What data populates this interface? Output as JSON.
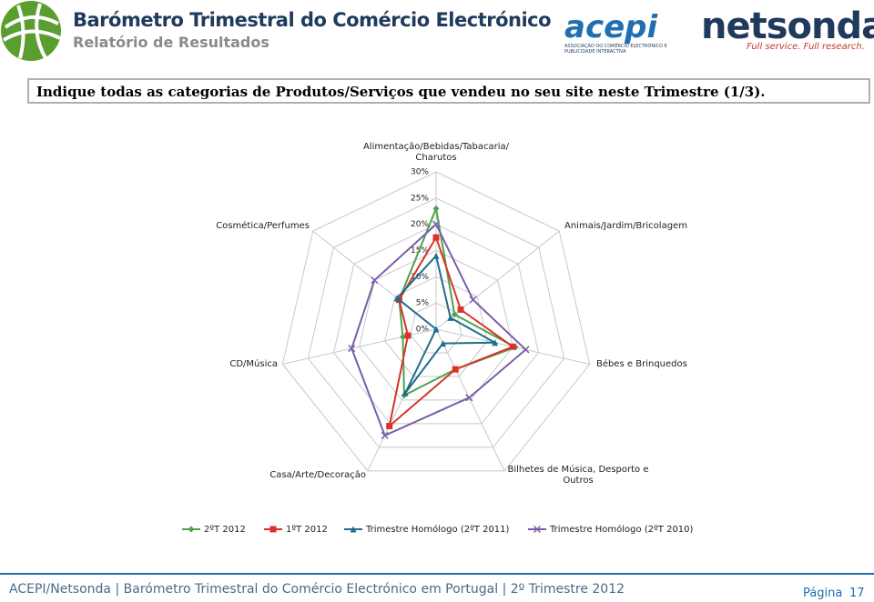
{
  "header": {
    "title": "Barómetro Trimestral do Comércio Electrónico",
    "subtitle": "Relatório de Resultados",
    "logo_acepi": "acepi",
    "logo_acepi_caption": "ASSOCIAÇÃO DO COMÉRCIO ELECTRÓNICO E PUBLICIDADE INTERACTIVA",
    "logo_netsonda": "netsonda",
    "logo_netsonda_tagline": "Full service. Full research."
  },
  "question": "Indique todas as categorias de Produtos/Serviços que vendeu no seu site neste Trimestre (1/3).",
  "chart_data": {
    "type": "radar",
    "categories": [
      "Alimentação/Bebidas/Tabacaria/ Charutos",
      "Animais/Jardim/Bricolagem",
      "Bébes e Brinquedos",
      "Bilhetes de Música, Desporto e Outros",
      "Casa/Arte/Decoração",
      "CD/Música",
      "Cosmética/Perfumes"
    ],
    "ylim": [
      0,
      30
    ],
    "yticks": [
      {
        "value": 0,
        "label": "0%"
      },
      {
        "value": 5,
        "label": "5%"
      },
      {
        "value": 10,
        "label": "10%"
      },
      {
        "value": 15,
        "label": "15%"
      },
      {
        "value": 20,
        "label": "20%"
      },
      {
        "value": 25,
        "label": "25%"
      },
      {
        "value": 30,
        "label": "30%"
      }
    ],
    "grid": true,
    "series": [
      {
        "name": "2ºT 2012",
        "color": "#4ea24e",
        "marker": "diamond",
        "values": [
          23,
          4.5,
          15.5,
          8.5,
          14,
          6.5,
          9
        ]
      },
      {
        "name": "1ºT 2012",
        "color": "#d9342b",
        "marker": "square",
        "values": [
          17.5,
          6,
          15,
          8.5,
          20.5,
          5.5,
          9
        ]
      },
      {
        "name": "Trimestre Homólogo (2ºT 2011)",
        "color": "#1f6e8c",
        "marker": "triangle",
        "values": [
          14,
          3.5,
          11.5,
          3,
          13.5,
          0,
          9.5
        ]
      },
      {
        "name": "Trimestre Homólogo (2ºT 2010)",
        "color": "#7b5ea7",
        "marker": "x",
        "values": [
          20,
          9,
          17.5,
          14.5,
          22.5,
          16.5,
          15
        ]
      }
    ]
  },
  "footer": {
    "text": "ACEPI/Netsonda | Barómetro Trimestral do Comércio Electrónico em Portugal | 2º Trimestre 2012",
    "page_label": "Página",
    "page_number": "17"
  }
}
